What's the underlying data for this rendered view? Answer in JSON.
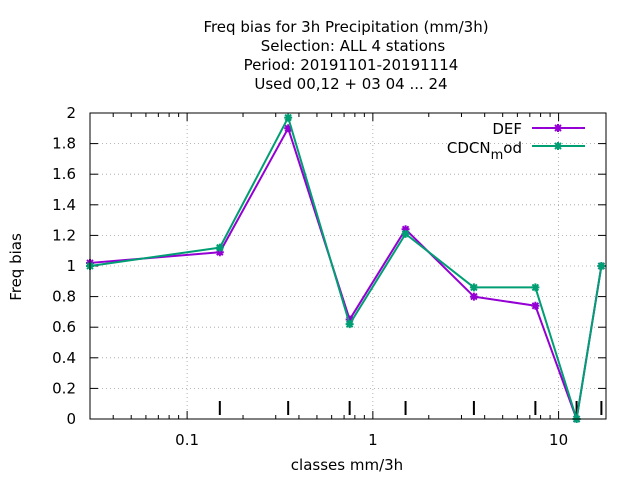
{
  "chart_data": {
    "type": "line",
    "title": [
      "Freq bias  for 3h Precipitation (mm/3h)",
      "Selection: ALL      4 stations",
      "Period: 20191101-20191114",
      "Used  00,12  + 03 04 ... 24"
    ],
    "xlabel": "classes mm/3h",
    "ylabel": "Freq bias",
    "x_scale": "log",
    "xlim": [
      0.03,
      18
    ],
    "ylim": [
      0,
      2
    ],
    "x_ticks": [
      0.1,
      1,
      10
    ],
    "x_tick_labels": [
      "0.1",
      "1",
      "10"
    ],
    "y_ticks": [
      0,
      0.2,
      0.4,
      0.6,
      0.8,
      1,
      1.2,
      1.4,
      1.6,
      1.8,
      2
    ],
    "y_tick_labels": [
      "0",
      "0.2",
      "0.4",
      "0.6",
      "0.8",
      "1",
      "1.2",
      "1.4",
      "1.6",
      "1.8",
      "2"
    ],
    "extra_x_marks": [
      0.15,
      0.35,
      0.75,
      1.5,
      3.5,
      7.5,
      12.5,
      17
    ],
    "grid": true,
    "legend_position": "top-right",
    "x": [
      0.03,
      0.15,
      0.35,
      0.75,
      1.5,
      3.5,
      7.5,
      12.5,
      17
    ],
    "series": [
      {
        "name": "DEF",
        "legend_main": "DEF",
        "legend_sub": "",
        "legend_tail": "",
        "color": "#9400d3",
        "values": [
          1.02,
          1.09,
          1.9,
          0.65,
          1.24,
          0.8,
          0.74,
          0.0,
          1.0
        ]
      },
      {
        "name": "CDCN_mod",
        "legend_main": "CDCN",
        "legend_sub": "m",
        "legend_tail": "od",
        "color": "#009e73",
        "values": [
          1.0,
          1.12,
          1.97,
          0.62,
          1.21,
          0.86,
          0.86,
          0.0,
          1.0
        ]
      }
    ]
  }
}
